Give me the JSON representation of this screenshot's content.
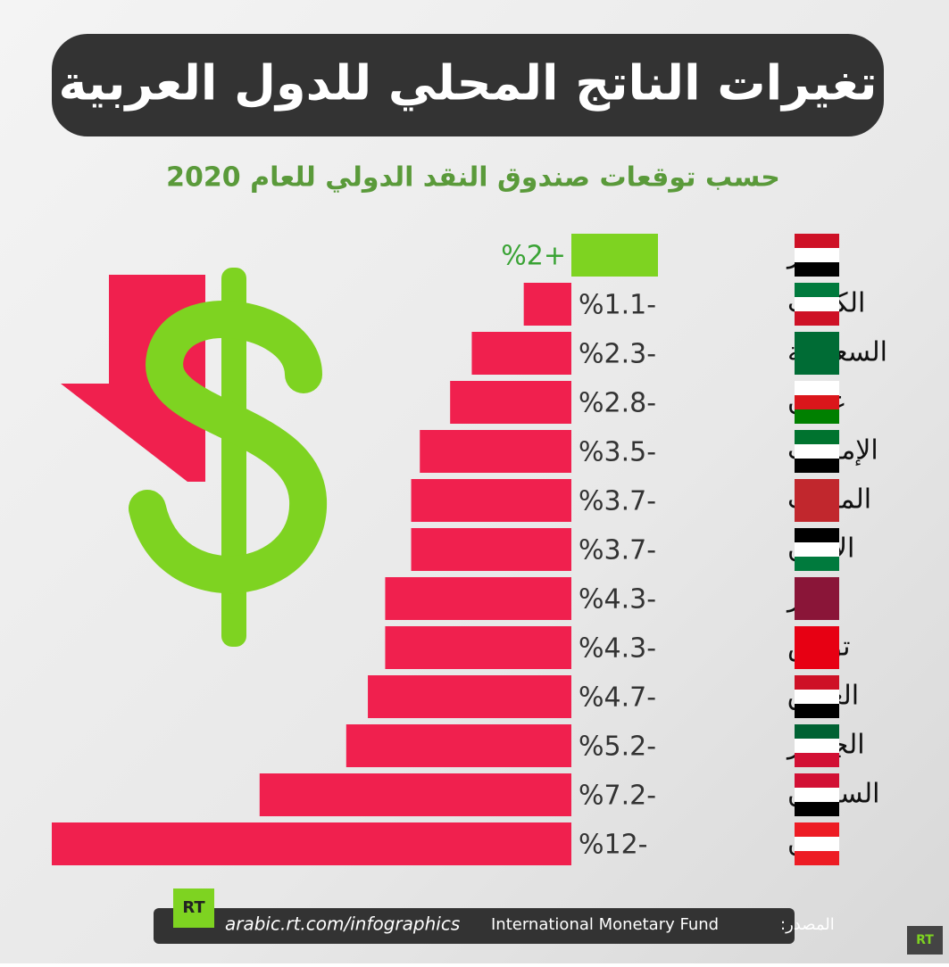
{
  "chart_data": {
    "type": "bar",
    "title": "تغيرات الناتج المحلي للدول العربية",
    "subtitle": "حسب توقعات صندوق النقد الدولي للعام 2020",
    "categories": [
      "مصر",
      "الكويت",
      "السعودية",
      "عمان",
      "الإمارات",
      "المغرب",
      "الأردن",
      "قطر",
      "تونس",
      "العراق",
      "الجزائر",
      "السودان",
      "لبنان"
    ],
    "values": [
      2,
      -1.1,
      -2.3,
      -2.8,
      -3.5,
      -3.7,
      -3.7,
      -4.3,
      -4.3,
      -4.7,
      -5.2,
      -7.2,
      -12
    ],
    "value_labels": [
      "%2+",
      "%1.1-",
      "%2.3-",
      "%2.8-",
      "%3.5-",
      "%3.7-",
      "%3.7-",
      "%4.3-",
      "%4.3-",
      "%4.7-",
      "%5.2-",
      "%7.2-",
      "%12-"
    ],
    "positive_color": "#7ed321",
    "negative_color": "#f0204e"
  },
  "footer": {
    "logo": "RT",
    "url": "arabic.rt.com/infographics",
    "source_label": "المصدر:",
    "source": "International Monetary Fund",
    "corner_logo": "RT"
  }
}
